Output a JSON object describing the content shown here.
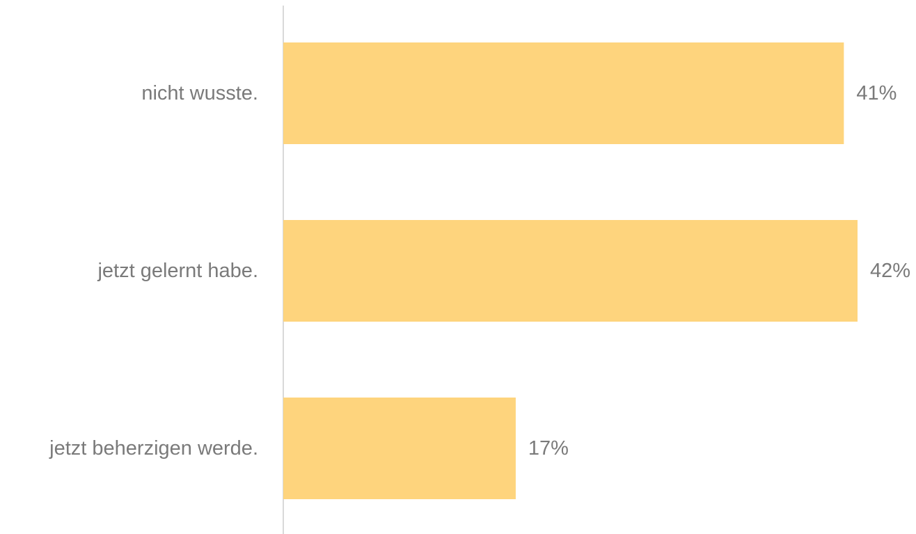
{
  "chart_data": {
    "type": "bar",
    "orientation": "horizontal",
    "categories": [
      "nicht wusste.",
      "jetzt gelernt habe.",
      "jetzt beherzigen werde."
    ],
    "values": [
      41,
      42,
      17
    ],
    "value_labels": [
      "41%",
      "42%",
      "17%"
    ],
    "unit": "%",
    "xlim": [
      0,
      42
    ],
    "grid": false,
    "legend": "none",
    "bar_color": "#FED47D",
    "axis_color": "#D9D9D9",
    "label_color": "#7A7A7A"
  }
}
